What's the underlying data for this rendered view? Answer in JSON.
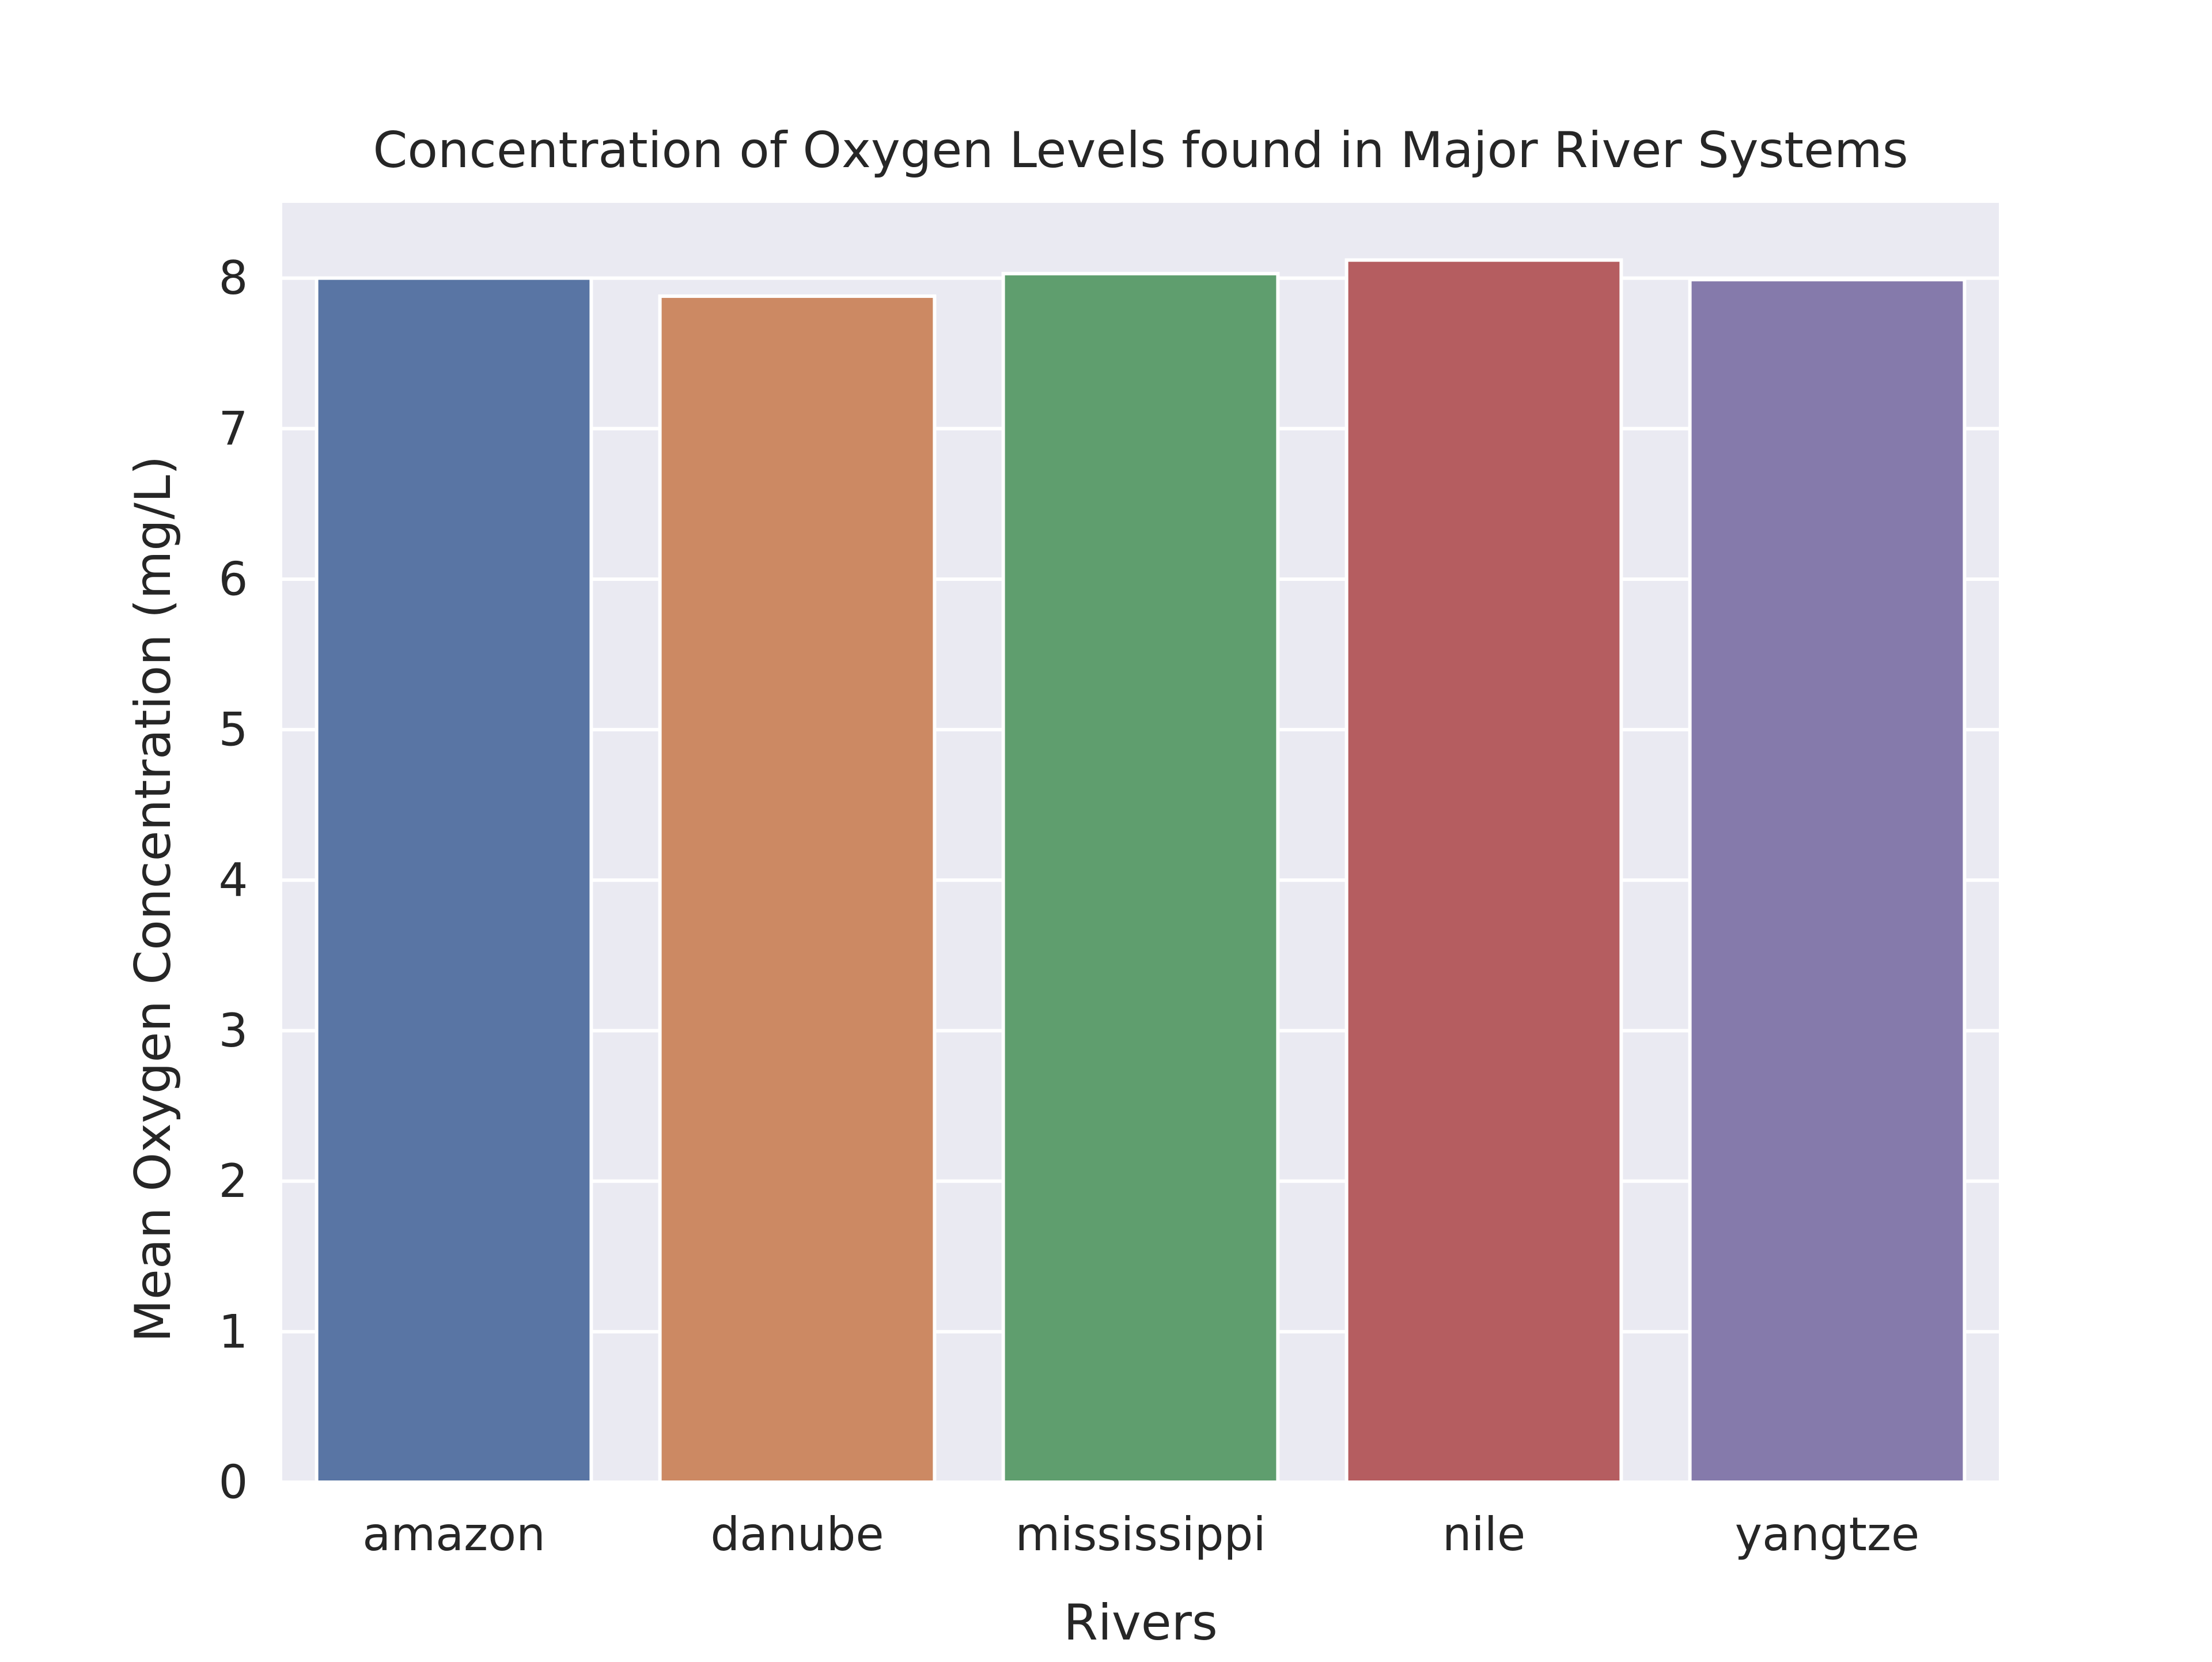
{
  "chart_data": {
    "type": "bar",
    "title": "Concentration of Oxygen Levels found in Major River Systems",
    "xlabel": "Rivers",
    "ylabel": "Mean Oxygen Concentration (mg/L)",
    "categories": [
      "amazon",
      "danube",
      "mississippi",
      "nile",
      "yangtze"
    ],
    "values": [
      8.0,
      7.88,
      8.03,
      8.12,
      7.99
    ],
    "colors": [
      "#5975a4",
      "#cc8963",
      "#5f9e6e",
      "#b55d60",
      "#857aab"
    ],
    "ylim": [
      0,
      8.5
    ],
    "yticks": [
      0,
      1,
      2,
      3,
      4,
      5,
      6,
      7,
      8
    ],
    "grid": true,
    "background": "#eaeaf2",
    "grid_color": "#ffffff"
  }
}
